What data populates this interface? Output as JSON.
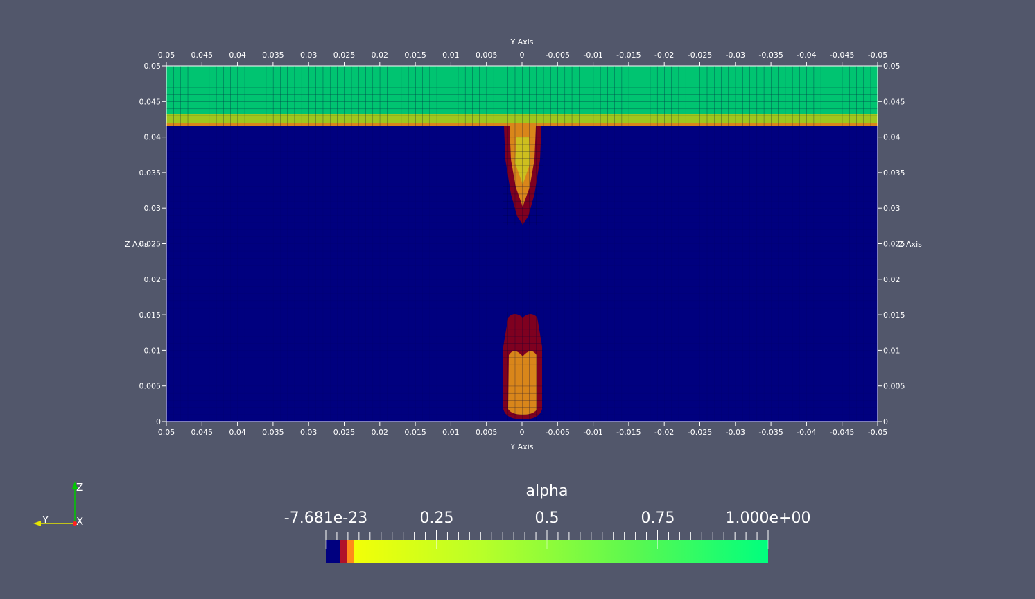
{
  "axes": {
    "x_title": "Y Axis",
    "y_title": "Z Axis",
    "x_ticks": [
      "0.05",
      "0.045",
      "0.04",
      "0.035",
      "0.03",
      "0.025",
      "0.02",
      "0.015",
      "0.01",
      "0.005",
      "0",
      "-0.005",
      "-0.01",
      "-0.015",
      "-0.02",
      "-0.025",
      "-0.03",
      "-0.035",
      "-0.04",
      "-0.045",
      "-0.05"
    ],
    "y_ticks": [
      "0",
      "0.005",
      "0.01",
      "0.015",
      "0.02",
      "0.025",
      "0.03",
      "0.035",
      "0.04",
      "0.045",
      "0.05"
    ]
  },
  "colorbar": {
    "title": "alpha",
    "labels": [
      "-7.681e-23",
      "0.25",
      "0.5",
      "0.75",
      "1.000e+00"
    ]
  },
  "orientation": {
    "z_label": "Z",
    "y_label": "Y",
    "x_label": "X"
  },
  "colors": {
    "background": "#52576b",
    "gas": "#00007f",
    "liquid": "#00c471",
    "interface": "#9fc61e",
    "low": "#7f0020",
    "mid": "#d9861a",
    "high": "#cdbf1e"
  }
}
